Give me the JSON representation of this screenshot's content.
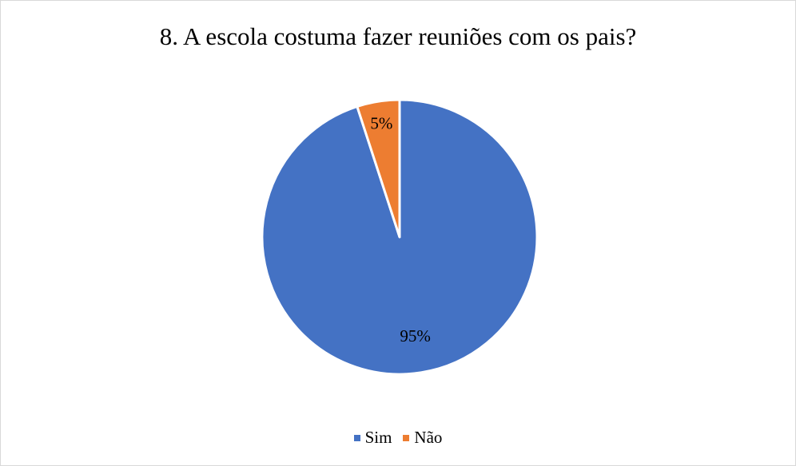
{
  "chart_data": {
    "type": "pie",
    "title": "8. A escola costuma fazer reuniões com os pais?",
    "slices": [
      {
        "label": "Não",
        "value": 5,
        "data_label": "5%",
        "color": "#ed7d31"
      },
      {
        "label": "Sim",
        "value": 95,
        "data_label": "95%",
        "color": "#4472c4"
      }
    ],
    "legend": {
      "placement": "bottom",
      "entries": [
        {
          "label": "Sim",
          "color": "#4472c4"
        },
        {
          "label": "Não",
          "color": "#ed7d31"
        }
      ]
    }
  }
}
